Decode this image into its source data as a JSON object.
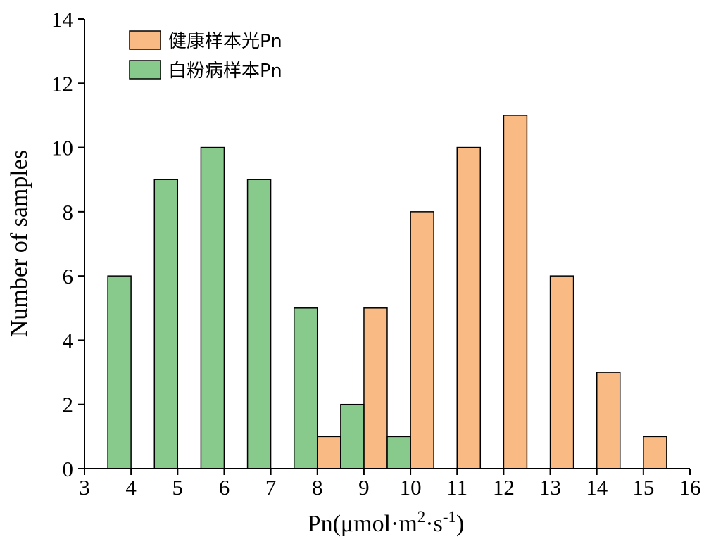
{
  "chart_data": {
    "type": "bar",
    "xlabel": {
      "base": "Pn(μmol·m",
      "sup1": "2",
      "mid": "·s",
      "sup2": "-1",
      "end": ")"
    },
    "ylabel": "Number of samples",
    "xlim": [
      3,
      16
    ],
    "ylim": [
      0,
      14
    ],
    "x_ticks": [
      "3",
      "4",
      "5",
      "6",
      "7",
      "8",
      "9",
      "10",
      "11",
      "12",
      "13",
      "14",
      "15",
      "16"
    ],
    "y_ticks": [
      "0",
      "2",
      "4",
      "6",
      "8",
      "10",
      "12",
      "14"
    ],
    "legend_position": "top-left",
    "series": [
      {
        "name": "健康样本光Pn",
        "color": "#F9BA84",
        "x": [
          8.25,
          9.25,
          10.25,
          11.25,
          12.25,
          13.25,
          14.25,
          15.25
        ],
        "values": [
          1,
          5,
          8,
          10,
          11,
          6,
          3,
          1
        ]
      },
      {
        "name": "白粉病样本Pn",
        "color": "#88CA8C",
        "x": [
          3.75,
          4.75,
          5.75,
          6.75,
          7.75,
          8.75,
          9.75
        ],
        "values": [
          6,
          9,
          10,
          9,
          5,
          2,
          1
        ]
      }
    ]
  }
}
